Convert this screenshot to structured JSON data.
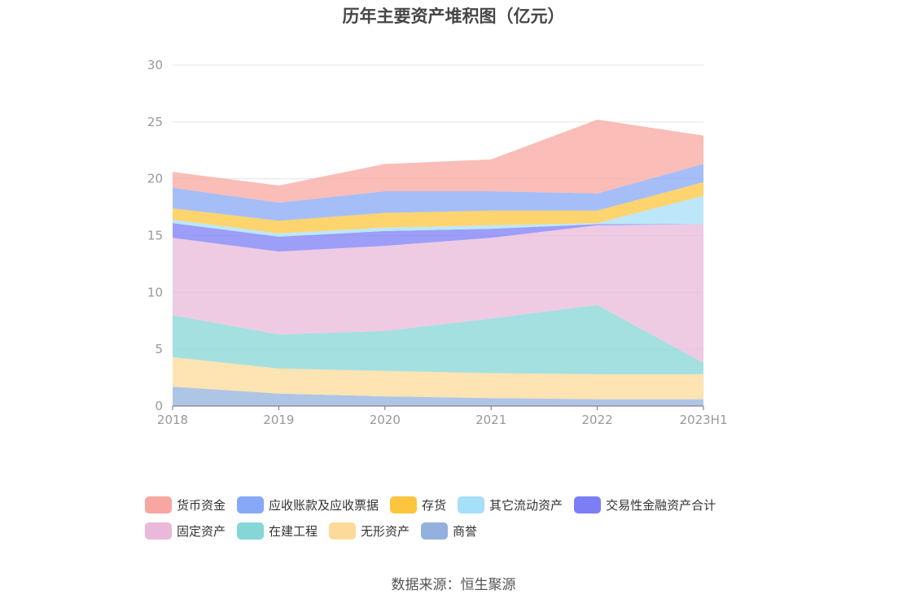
{
  "chart_data": {
    "type": "area",
    "stacked": true,
    "title": "历年主要资产堆积图（亿元）",
    "categories": [
      "2018",
      "2019",
      "2020",
      "2021",
      "2022",
      "2023H1"
    ],
    "ylim": [
      0,
      30
    ],
    "yticks": [
      0,
      5,
      10,
      15,
      20,
      25,
      30
    ],
    "xlabel": "",
    "ylabel": "",
    "grid": true,
    "legend_position": "bottom",
    "series": [
      {
        "name": "商誉",
        "color": "#93b1dc",
        "values": [
          1.7,
          1.1,
          0.85,
          0.7,
          0.6,
          0.6
        ]
      },
      {
        "name": "无形资产",
        "color": "#fdd99a",
        "values": [
          2.6,
          2.2,
          2.25,
          2.2,
          2.2,
          2.2
        ]
      },
      {
        "name": "在建工程",
        "color": "#85d6d6",
        "values": [
          3.7,
          3.0,
          3.5,
          4.8,
          6.1,
          1.0
        ]
      },
      {
        "name": "固定资产",
        "color": "#eab8d9",
        "values": [
          6.8,
          7.3,
          7.5,
          7.1,
          7.0,
          12.2
        ]
      },
      {
        "name": "交易性金融资产合计",
        "color": "#7b7ef5",
        "values": [
          1.3,
          1.3,
          1.3,
          0.8,
          0.1,
          0.0
        ]
      },
      {
        "name": "其它流动资产",
        "color": "#a6dff8",
        "values": [
          0.3,
          0.3,
          0.3,
          0.3,
          0.1,
          2.5
        ]
      },
      {
        "name": "存货",
        "color": "#fcc53d",
        "values": [
          1.0,
          1.1,
          1.3,
          1.3,
          1.1,
          1.2
        ]
      },
      {
        "name": "应收账款及应收票据",
        "color": "#87a8f6",
        "values": [
          1.8,
          1.6,
          1.9,
          1.7,
          1.5,
          1.6
        ]
      },
      {
        "name": "货币资金",
        "color": "#f8a7a0",
        "values": [
          1.4,
          1.5,
          2.4,
          2.8,
          6.5,
          2.5
        ]
      }
    ]
  },
  "legend": {
    "rows": [
      [
        {
          "label": "货币资金",
          "color": "#f8a7a0"
        },
        {
          "label": "应收账款及应收票据",
          "color": "#87a8f6"
        },
        {
          "label": "存货",
          "color": "#fcc53d"
        },
        {
          "label": "其它流动资产",
          "color": "#a6dff8"
        },
        {
          "label": "交易性金融资产合计",
          "color": "#7b7ef5"
        }
      ],
      [
        {
          "label": "固定资产",
          "color": "#eab8d9"
        },
        {
          "label": "在建工程",
          "color": "#85d6d6"
        },
        {
          "label": "无形资产",
          "color": "#fdd99a"
        },
        {
          "label": "商誉",
          "color": "#93b1dc"
        }
      ]
    ]
  },
  "source_text": "数据来源：恒生聚源"
}
